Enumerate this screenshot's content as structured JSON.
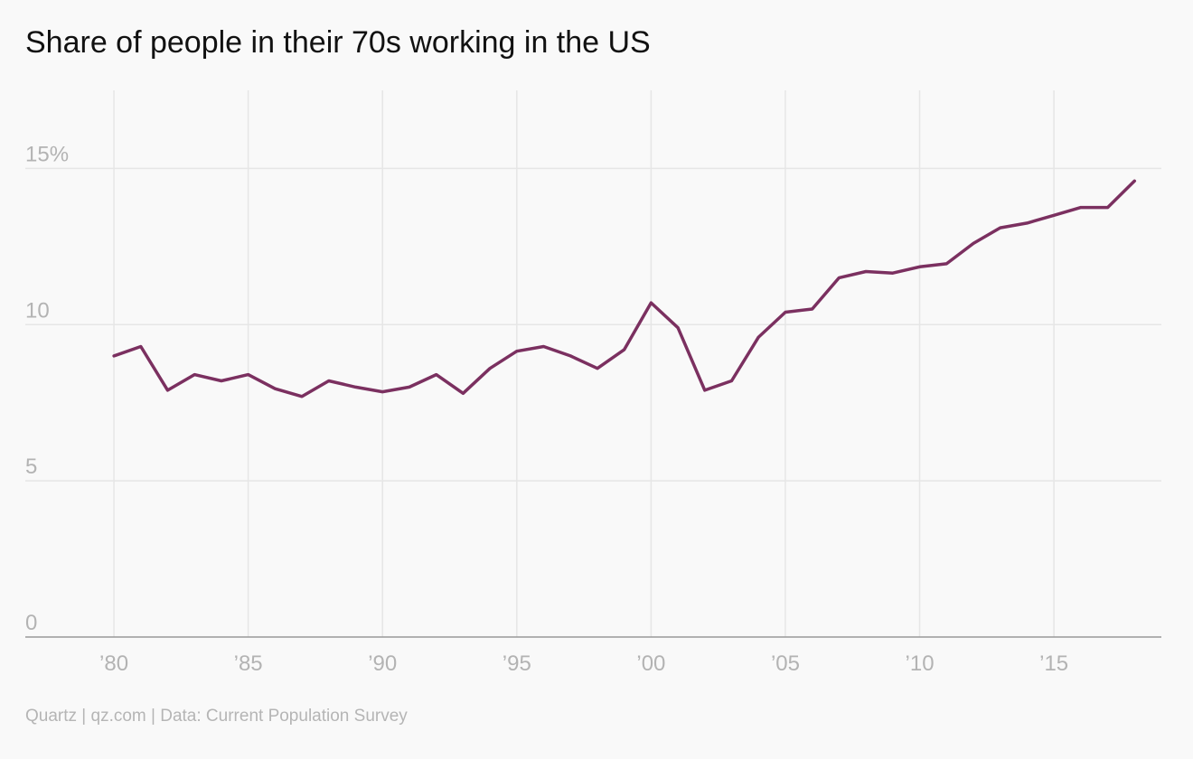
{
  "title": "Share of people in their 70s working in the US",
  "footer": "Quartz | qz.com | Data: Current Population Survey",
  "colors": {
    "background": "#f9f9f9",
    "line": "#7b3060",
    "grid": "#e6e6e6",
    "axis": "#999999",
    "tick_text": "#b3b3b3",
    "title_text": "#111111",
    "footer_text": "#b5b5b5"
  },
  "chart_data": {
    "type": "line",
    "title": "Share of people in their 70s working in the US",
    "xlabel": "",
    "ylabel": "",
    "xlim": [
      1976.7,
      2019
    ],
    "ylim": [
      0,
      17.5
    ],
    "grid": true,
    "legend": "none",
    "x_ticks": [
      1980,
      1985,
      1990,
      1995,
      2000,
      2005,
      2010,
      2015
    ],
    "x_tick_labels": [
      "’80",
      "’85",
      "’90",
      "’95",
      "’00",
      "’05",
      "’10",
      "’15"
    ],
    "y_ticks": [
      0,
      5,
      10,
      15
    ],
    "y_tick_labels": [
      "0",
      "5",
      "10",
      "15%"
    ],
    "series": [
      {
        "x": [
          1980,
          1981,
          1982,
          1983,
          1984,
          1985,
          1986,
          1987,
          1988,
          1989,
          1990,
          1991,
          1992,
          1993,
          1994,
          1995,
          1996,
          1997,
          1998,
          1999,
          2000,
          2001,
          2002,
          2003,
          2004,
          2005,
          2006,
          2007,
          2008,
          2009,
          2010,
          2011,
          2012,
          2013,
          2014,
          2015,
          2016,
          2017,
          2018
        ],
        "values": [
          9.0,
          9.3,
          7.9,
          8.4,
          8.2,
          8.4,
          7.95,
          7.7,
          8.2,
          8.0,
          7.85,
          8.0,
          8.4,
          7.8,
          8.6,
          9.15,
          9.3,
          9.0,
          8.6,
          9.2,
          10.7,
          9.9,
          7.9,
          8.2,
          9.6,
          10.4,
          10.5,
          11.5,
          11.7,
          11.65,
          11.85,
          11.95,
          12.6,
          13.1,
          13.25,
          13.5,
          13.75,
          13.75,
          14.6
        ],
        "color": "#7b3060"
      }
    ]
  }
}
